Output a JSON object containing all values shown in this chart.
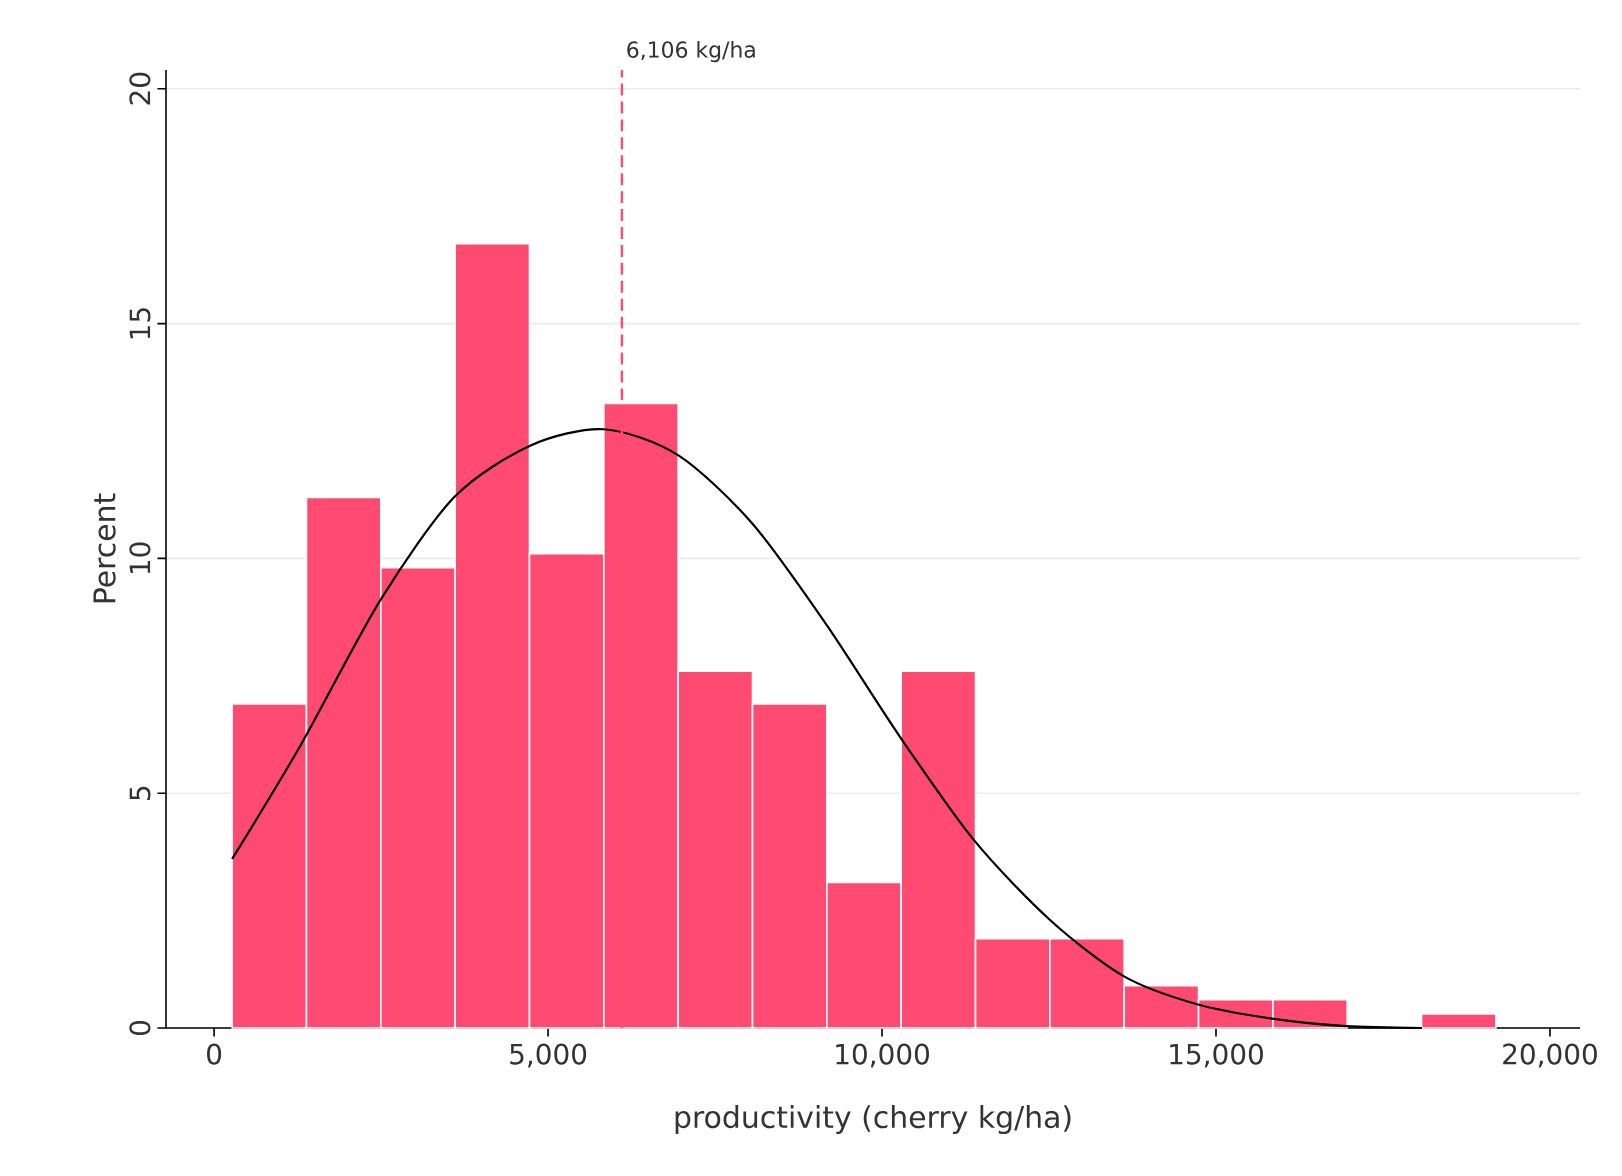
{
  "chart_data": {
    "type": "histogram",
    "xlabel": "productivity (cherry kg/ha)",
    "ylabel": "Percent",
    "bins": [
      270,
      1383,
      2496,
      3609,
      4722,
      5835,
      6948,
      8061,
      9174,
      10287,
      11400,
      12513,
      13626,
      14739,
      15852,
      16965,
      18078,
      19191
    ],
    "values": [
      6.9,
      11.3,
      9.8,
      16.7,
      10.1,
      13.3,
      7.6,
      6.9,
      3.1,
      7.6,
      1.9,
      1.9,
      0.9,
      0.6,
      0.6,
      0,
      0.3
    ],
    "color": "#ff4a72",
    "series": [
      {
        "type": "line",
        "color": "#000000",
        "x": [
          270,
          1287,
          2485,
          3593,
          4731,
          5838,
          6946,
          8054,
          9162,
          10269,
          11377,
          12515,
          13623,
          14731,
          15838,
          16946,
          18084
        ],
        "values": [
          3.6,
          6.0,
          9.1,
          11.3,
          12.4,
          12.75,
          12.2,
          10.75,
          8.6,
          6.2,
          4.0,
          2.3,
          1.1,
          0.5,
          0.2,
          0.04,
          0.0
        ]
      }
    ],
    "ref_lines": [
      {
        "axis": "x",
        "value": 6106,
        "label": "6,106 kg/ha",
        "color": "#ff4a72",
        "line_style": "dashed"
      }
    ],
    "xlim": [
      -720,
      20450
    ],
    "ylim": [
      0,
      20.4
    ],
    "xticks": [
      {
        "value": 0,
        "label": "0"
      },
      {
        "value": 5000,
        "label": "5,000"
      },
      {
        "value": 10000,
        "label": "10,000"
      },
      {
        "value": 15000,
        "label": "15,000"
      },
      {
        "value": 20000,
        "label": "20,000"
      }
    ],
    "yticks": [
      0,
      5,
      10,
      15,
      20
    ],
    "grid": "y"
  }
}
